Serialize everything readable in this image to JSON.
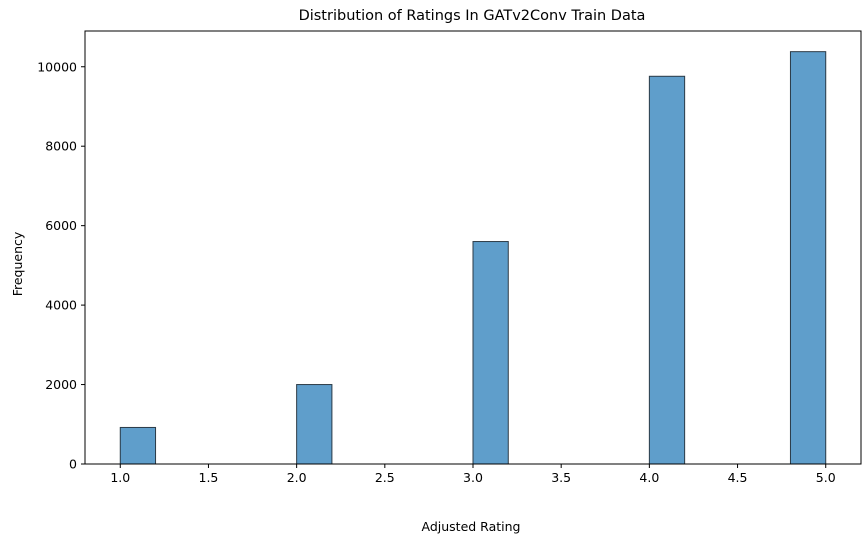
{
  "chart_data": {
    "type": "bar",
    "title": "Distribution of Ratings In GATv2Conv Train Data",
    "xlabel": "Adjusted Rating",
    "ylabel": "Frequency",
    "xlim": [
      0.8,
      5.2
    ],
    "ylim": [
      0,
      10900
    ],
    "x_ticks": [
      "1.0",
      "1.5",
      "2.0",
      "2.5",
      "3.0",
      "3.5",
      "4.0",
      "4.5",
      "5.0"
    ],
    "y_ticks": [
      "0",
      "2000",
      "4000",
      "6000",
      "8000",
      "10000"
    ],
    "bin_width": 0.2,
    "bins": [
      {
        "x_start": 1.0,
        "x_end": 1.2,
        "value": 920
      },
      {
        "x_start": 2.0,
        "x_end": 2.2,
        "value": 2000
      },
      {
        "x_start": 3.0,
        "x_end": 3.2,
        "value": 5600
      },
      {
        "x_start": 4.0,
        "x_end": 4.2,
        "value": 9760
      },
      {
        "x_start": 4.8,
        "x_end": 5.0,
        "value": 10380
      }
    ],
    "bar_color": "#5f9ecb",
    "bar_edge_color": "#2b3a46",
    "grid": false,
    "legend": "none"
  }
}
